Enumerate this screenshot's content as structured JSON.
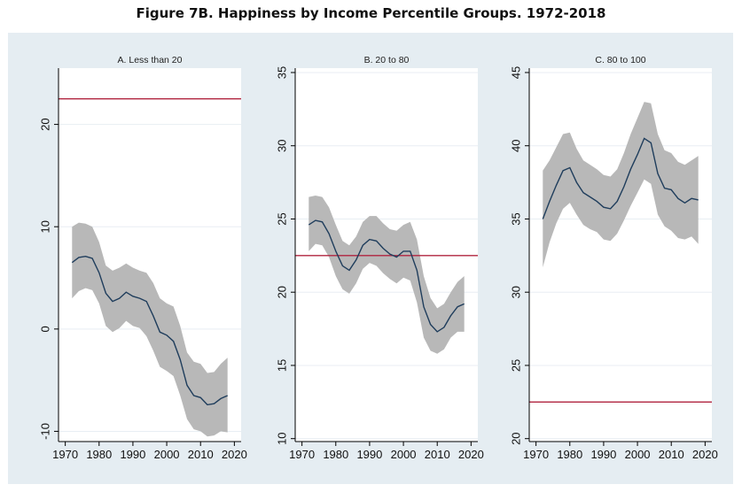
{
  "title": "Figure 7B.  Happiness by Income Percentile Groups. 1972-2018",
  "colors": {
    "background": "#e5edf2",
    "plot": "#ffffff",
    "grid": "#e8eef3",
    "band": "#b8b8b8",
    "line": "#1f3d5c",
    "reference": "#b0243f"
  },
  "chart_data": [
    {
      "type": "line",
      "title": "A. Less than 20",
      "xlim": [
        1968,
        2022
      ],
      "ylim": [
        -11,
        25.5
      ],
      "xticks": [
        1970,
        1980,
        1990,
        2000,
        2010,
        2020
      ],
      "yticks": [
        -10,
        0,
        10,
        20
      ],
      "reference_y": 22.5,
      "x": [
        1972,
        1974,
        1976,
        1978,
        1980,
        1982,
        1984,
        1986,
        1988,
        1990,
        1992,
        1994,
        1996,
        1998,
        2000,
        2002,
        2004,
        2006,
        2008,
        2010,
        2012,
        2014,
        2016,
        2018
      ],
      "y": [
        6.5,
        7.0,
        7.1,
        6.9,
        5.5,
        3.5,
        2.7,
        3.0,
        3.6,
        3.2,
        3.0,
        2.7,
        1.3,
        -0.3,
        -0.6,
        -1.2,
        -3.0,
        -5.5,
        -6.5,
        -6.7,
        -7.4,
        -7.3,
        -6.8,
        -6.5
      ],
      "lower": [
        3.0,
        3.7,
        4.0,
        3.8,
        2.5,
        0.3,
        -0.3,
        0.1,
        0.8,
        0.3,
        0.1,
        -0.7,
        -2.1,
        -3.7,
        -4.1,
        -4.6,
        -6.5,
        -8.8,
        -9.8,
        -10.0,
        -10.5,
        -10.4,
        -10.0,
        -10.1
      ],
      "upper": [
        10.0,
        10.4,
        10.3,
        10.0,
        8.5,
        6.2,
        5.7,
        6.0,
        6.4,
        6.0,
        5.7,
        5.5,
        4.5,
        3.0,
        2.5,
        2.2,
        0.3,
        -2.3,
        -3.2,
        -3.4,
        -4.3,
        -4.2,
        -3.4,
        -2.8
      ]
    },
    {
      "type": "line",
      "title": "B.  20 to 80",
      "xlim": [
        1968,
        2022
      ],
      "ylim": [
        9.8,
        35.3
      ],
      "xticks": [
        1970,
        1980,
        1990,
        2000,
        2010,
        2020
      ],
      "yticks": [
        10,
        15,
        20,
        25,
        30,
        35
      ],
      "reference_y": 22.5,
      "x": [
        1972,
        1974,
        1976,
        1978,
        1980,
        1982,
        1984,
        1986,
        1988,
        1990,
        1992,
        1994,
        1996,
        1998,
        2000,
        2002,
        2004,
        2006,
        2008,
        2010,
        2012,
        2014,
        2016,
        2018
      ],
      "y": [
        24.6,
        24.9,
        24.8,
        24.0,
        22.8,
        21.8,
        21.5,
        22.2,
        23.2,
        23.6,
        23.5,
        23.0,
        22.6,
        22.4,
        22.8,
        22.8,
        21.5,
        19.0,
        17.8,
        17.3,
        17.6,
        18.4,
        19.0,
        19.2
      ],
      "lower": [
        22.8,
        23.3,
        23.2,
        22.4,
        21.1,
        20.2,
        19.9,
        20.6,
        21.6,
        22.0,
        21.8,
        21.3,
        20.9,
        20.6,
        21.0,
        20.8,
        19.3,
        16.9,
        16.0,
        15.8,
        16.1,
        16.9,
        17.3,
        17.3
      ],
      "upper": [
        26.5,
        26.6,
        26.5,
        25.8,
        24.6,
        23.5,
        23.2,
        23.8,
        24.8,
        25.2,
        25.2,
        24.7,
        24.3,
        24.2,
        24.6,
        24.8,
        23.6,
        21.1,
        19.6,
        18.9,
        19.2,
        20.0,
        20.7,
        21.1
      ]
    },
    {
      "type": "line",
      "title": "C. 80 to 100",
      "xlim": [
        1968,
        2022
      ],
      "ylim": [
        19.8,
        45.3
      ],
      "xticks": [
        1970,
        1980,
        1990,
        2000,
        2010,
        2020
      ],
      "yticks": [
        20,
        25,
        30,
        35,
        40,
        45
      ],
      "reference_y": 22.5,
      "x": [
        1972,
        1974,
        1976,
        1978,
        1980,
        1982,
        1984,
        1986,
        1988,
        1990,
        1992,
        1994,
        1996,
        1998,
        2000,
        2002,
        2004,
        2006,
        2008,
        2010,
        2012,
        2014,
        2016,
        2018
      ],
      "y": [
        35.0,
        36.2,
        37.3,
        38.3,
        38.5,
        37.5,
        36.8,
        36.5,
        36.2,
        35.8,
        35.7,
        36.2,
        37.2,
        38.4,
        39.4,
        40.5,
        40.2,
        38.1,
        37.1,
        37.0,
        36.4,
        36.1,
        36.4,
        36.3
      ],
      "lower": [
        31.7,
        33.4,
        34.7,
        35.7,
        36.1,
        35.3,
        34.6,
        34.3,
        34.1,
        33.6,
        33.5,
        34.0,
        34.9,
        35.9,
        36.8,
        37.7,
        37.4,
        35.3,
        34.5,
        34.2,
        33.7,
        33.6,
        33.8,
        33.3
      ],
      "upper": [
        38.3,
        39.0,
        39.9,
        40.8,
        40.9,
        39.8,
        39.0,
        38.7,
        38.4,
        38.0,
        37.9,
        38.4,
        39.5,
        40.8,
        41.9,
        43.0,
        42.9,
        40.8,
        39.7,
        39.5,
        38.9,
        38.7,
        39.0,
        39.3
      ]
    }
  ]
}
